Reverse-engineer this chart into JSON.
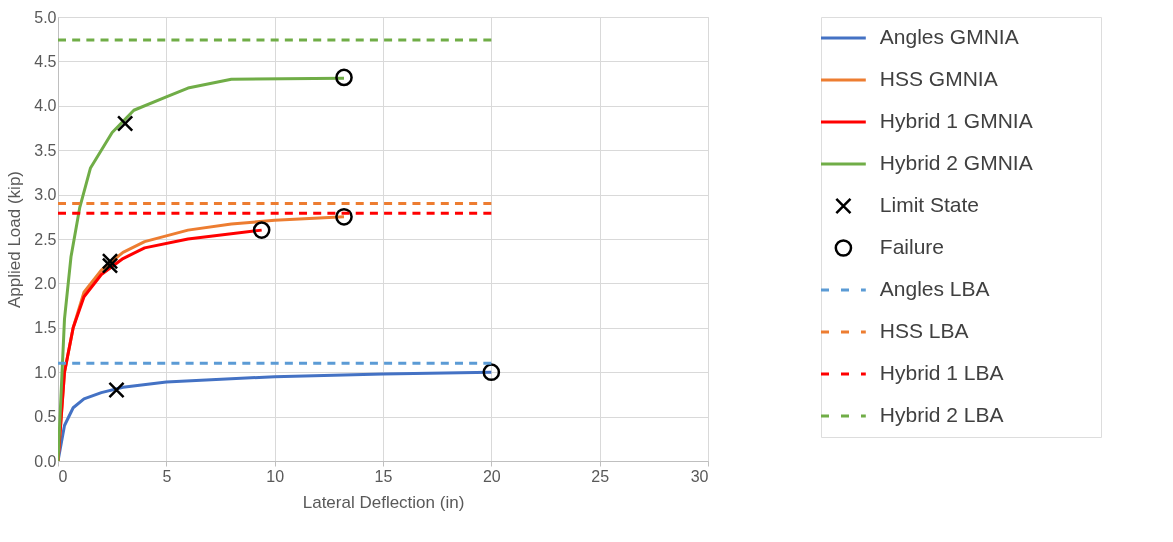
{
  "chart_data": {
    "type": "line",
    "xlabel": "Lateral Deflection (in)",
    "ylabel": "Applied Load (kip)",
    "xlim": [
      0,
      30
    ],
    "xticks": [
      0,
      5,
      10,
      15,
      20,
      25,
      30
    ],
    "ylim": [
      0,
      5
    ],
    "yticks": [
      {
        "value": 0,
        "label": "0.0"
      },
      0.5,
      {
        "value": 1,
        "label": "1.0"
      },
      1.5,
      {
        "value": 2,
        "label": "2.0"
      },
      2.5,
      {
        "value": 3,
        "label": "3.0"
      },
      3.5,
      {
        "value": 4,
        "label": "4.0"
      },
      4.5,
      {
        "value": 5,
        "label": "5.0"
      }
    ],
    "grid": true,
    "legend": "right",
    "series": [
      {
        "name": "Angles GMNIA",
        "color": "#4472c4",
        "line_style": "solid",
        "x": [
          0,
          0.3,
          0.7,
          1.2,
          2,
          3,
          5,
          10,
          15,
          20
        ],
        "values": [
          0,
          0.4,
          0.6,
          0.7,
          0.77,
          0.83,
          0.89,
          0.95,
          0.98,
          1.0
        ]
      },
      {
        "name": "HSS GMNIA",
        "color": "#ed7d31",
        "line_style": "solid",
        "x": [
          0,
          0.3,
          0.7,
          1.2,
          2,
          3,
          4,
          6,
          8,
          10,
          13.2
        ],
        "values": [
          0,
          1.0,
          1.5,
          1.9,
          2.15,
          2.35,
          2.47,
          2.6,
          2.67,
          2.71,
          2.75
        ]
      },
      {
        "name": "Hybrid 1 GMNIA",
        "color": "#ff0000",
        "line_style": "solid",
        "x": [
          0,
          0.3,
          0.7,
          1.2,
          2,
          3,
          4,
          6,
          9.4
        ],
        "values": [
          0,
          1.0,
          1.5,
          1.85,
          2.1,
          2.28,
          2.4,
          2.5,
          2.6
        ]
      },
      {
        "name": "Hybrid 2 GMNIA",
        "color": "#70ad47",
        "line_style": "solid",
        "x": [
          0,
          0.3,
          0.6,
          1,
          1.5,
          2.5,
          3.5,
          5,
          6,
          8,
          13.2
        ],
        "values": [
          0,
          1.6,
          2.3,
          2.85,
          3.3,
          3.7,
          3.95,
          4.1,
          4.2,
          4.3,
          4.31
        ]
      },
      {
        "name": "Limit State",
        "color": "#000000",
        "type": "scatter",
        "marker": "cross",
        "x": [
          3.1,
          2.4,
          2.4,
          2.7
        ],
        "values": [
          3.8,
          2.25,
          2.2,
          0.8
        ]
      },
      {
        "name": "Failure",
        "color": "#000000",
        "type": "scatter",
        "marker": "circle",
        "x": [
          13.2,
          9.4,
          13.2,
          20
        ],
        "values": [
          4.32,
          2.6,
          2.75,
          1.0
        ]
      },
      {
        "name": "Angles LBA",
        "color": "#5b9bd5",
        "line_style": "dashed",
        "x": [
          0,
          20
        ],
        "values": [
          1.1,
          1.1
        ]
      },
      {
        "name": "HSS LBA",
        "color": "#ed7d31",
        "line_style": "dashed",
        "x": [
          0,
          20
        ],
        "values": [
          2.9,
          2.9
        ]
      },
      {
        "name": "Hybrid 1 LBA",
        "color": "#ff0000",
        "line_style": "dashed",
        "x": [
          0,
          20
        ],
        "values": [
          2.79,
          2.79
        ]
      },
      {
        "name": "Hybrid 2 LBA",
        "color": "#70ad47",
        "line_style": "dashed",
        "x": [
          0,
          20
        ],
        "values": [
          4.74,
          4.74
        ]
      }
    ]
  }
}
